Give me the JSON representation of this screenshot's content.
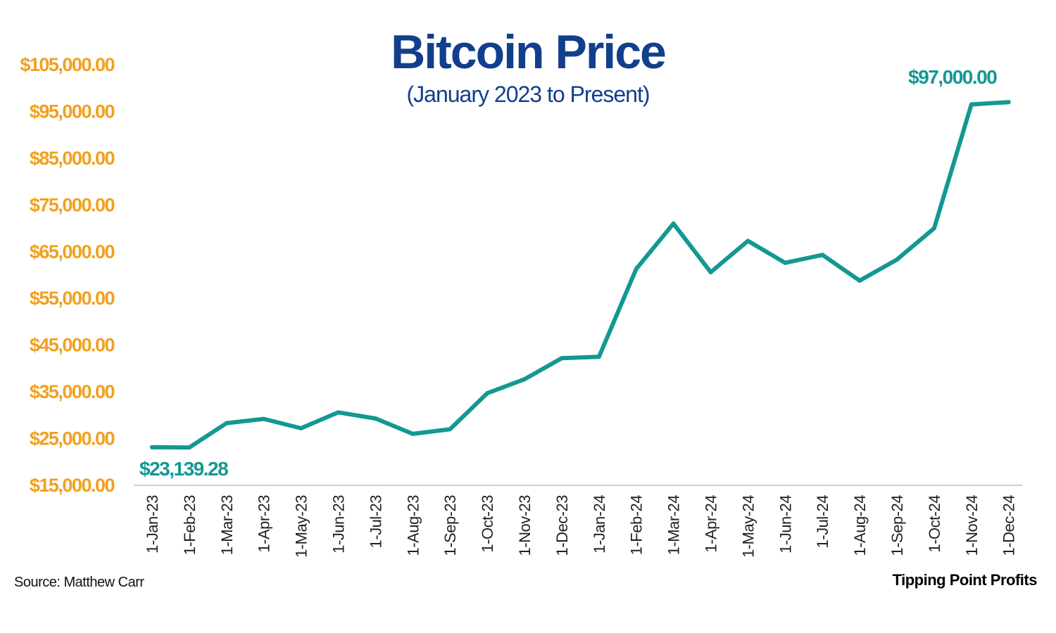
{
  "chart_data": {
    "type": "line",
    "title": "Bitcoin Price",
    "subtitle": "(January 2023 to Present)",
    "categories": [
      "1-Jan-23",
      "1-Feb-23",
      "1-Mar-23",
      "1-Apr-23",
      "1-May-23",
      "1-Jun-23",
      "1-Jul-23",
      "1-Aug-23",
      "1-Sep-23",
      "1-Oct-23",
      "1-Nov-23",
      "1-Dec-23",
      "1-Jan-24",
      "1-Feb-24",
      "1-Mar-24",
      "1-Apr-24",
      "1-May-24",
      "1-Jun-24",
      "1-Jul-24",
      "1-Aug-24",
      "1-Sep-24",
      "1-Oct-24",
      "1-Nov-24",
      "1-Dec-24"
    ],
    "series": [
      {
        "values": [
          23139.28,
          23100,
          28300,
          29200,
          27200,
          30600,
          29300,
          26000,
          27000,
          34700,
          37700,
          42200,
          42500,
          61300,
          71000,
          60600,
          67300,
          62600,
          64300,
          58800,
          63300,
          70000,
          96500,
          97000
        ]
      }
    ],
    "ylim": [
      15000,
      105000
    ],
    "yticks": [
      "$15,000.00",
      "$25,000.00",
      "$35,000.00",
      "$45,000.00",
      "$55,000.00",
      "$65,000.00",
      "$75,000.00",
      "$85,000.00",
      "$95,000.00",
      "$105,000.00"
    ],
    "ytick_values": [
      15000,
      25000,
      35000,
      45000,
      55000,
      65000,
      75000,
      85000,
      95000,
      105000
    ],
    "data_labels": [
      {
        "index": 0,
        "text": "$23,139.28"
      },
      {
        "index": 23,
        "text": "$97,000.00"
      }
    ],
    "grid": false,
    "legend": "none",
    "colors": {
      "line": "#139893",
      "title": "#123f8c",
      "ytick": "#f1a01e",
      "xtick": "#222222",
      "axis": "#cfcfcf",
      "label": "#139893",
      "source": "#111111",
      "brand": "#000000"
    }
  },
  "footer": {
    "source": "Source: Matthew Carr",
    "brand": "Tipping Point Profits"
  }
}
